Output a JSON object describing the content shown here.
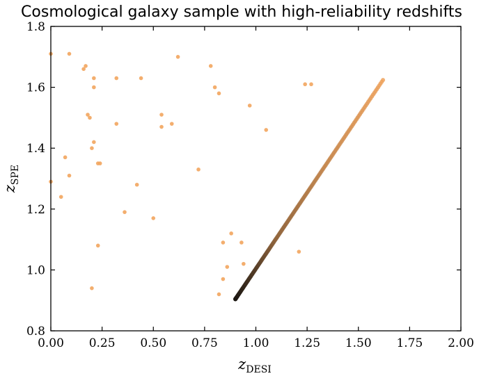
{
  "chart_data": {
    "type": "scatter",
    "title": "Cosmological galaxy sample with high-reliability redshifts",
    "xlabel": {
      "base": "z",
      "sub": "DESI"
    },
    "ylabel": {
      "base": "z",
      "sub": "SPE"
    },
    "xlim": [
      0.0,
      2.0
    ],
    "ylim": [
      0.8,
      1.8
    ],
    "x_ticks": [
      0.0,
      0.25,
      0.5,
      0.75,
      1.0,
      1.25,
      1.5,
      1.75,
      2.0
    ],
    "x_tick_labels": [
      "0.00",
      "0.25",
      "0.50",
      "0.75",
      "1.00",
      "1.25",
      "1.50",
      "1.75",
      "2.00"
    ],
    "y_ticks": [
      0.8,
      1.0,
      1.2,
      1.4,
      1.6,
      1.8
    ],
    "y_tick_labels": [
      "0.8",
      "1.0",
      "1.2",
      "1.4",
      "1.6",
      "1.8"
    ],
    "grid": false,
    "colors": {
      "outlier": "#f2a55e",
      "density_low": "#f2a55e",
      "density_high": "#1a1612",
      "frame": "#000000"
    },
    "diagonal_line": {
      "x_start": 0.9,
      "x_end": 1.62,
      "count": 190,
      "dense_end": 0.9
    },
    "outliers": [
      [
        0.0,
        1.71
      ],
      [
        0.09,
        1.71
      ],
      [
        0.16,
        1.66
      ],
      [
        0.17,
        1.67
      ],
      [
        0.21,
        1.63
      ],
      [
        0.32,
        1.63
      ],
      [
        0.44,
        1.63
      ],
      [
        0.62,
        1.7
      ],
      [
        0.78,
        1.67
      ],
      [
        0.8,
        1.6
      ],
      [
        0.82,
        1.58
      ],
      [
        0.21,
        1.6
      ],
      [
        0.97,
        1.54
      ],
      [
        0.18,
        1.51
      ],
      [
        0.19,
        1.5
      ],
      [
        0.54,
        1.51
      ],
      [
        0.32,
        1.48
      ],
      [
        0.59,
        1.48
      ],
      [
        0.54,
        1.47
      ],
      [
        1.05,
        1.46
      ],
      [
        1.24,
        1.61
      ],
      [
        1.27,
        1.61
      ],
      [
        0.21,
        1.42
      ],
      [
        0.2,
        1.4
      ],
      [
        0.07,
        1.37
      ],
      [
        0.23,
        1.35
      ],
      [
        0.24,
        1.35
      ],
      [
        0.72,
        1.33
      ],
      [
        0.09,
        1.31
      ],
      [
        0.0,
        1.29
      ],
      [
        0.42,
        1.28
      ],
      [
        0.05,
        1.24
      ],
      [
        0.36,
        1.19
      ],
      [
        0.5,
        1.17
      ],
      [
        0.88,
        1.12
      ],
      [
        0.84,
        1.09
      ],
      [
        0.93,
        1.09
      ],
      [
        0.23,
        1.08
      ],
      [
        1.21,
        1.06
      ],
      [
        0.94,
        1.02
      ],
      [
        0.86,
        1.01
      ],
      [
        0.84,
        0.97
      ],
      [
        0.2,
        0.94
      ],
      [
        0.82,
        0.92
      ]
    ]
  }
}
